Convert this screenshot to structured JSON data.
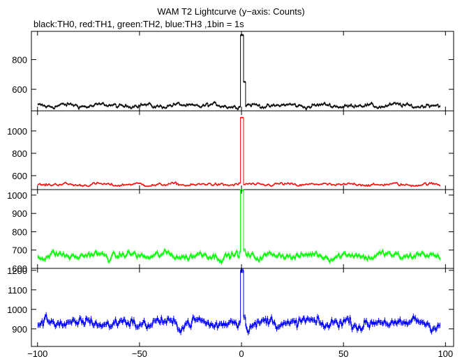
{
  "title": "WAM T2 Lightcurve (y−axis: Counts)",
  "subtitle": "black:TH0, red:TH1, green:TH2, blue:TH3 ,1bin = 1s",
  "chart_data": {
    "type": "line",
    "x_range": [
      -103,
      104
    ],
    "x_ticks": [
      -100,
      -50,
      0,
      50,
      100
    ],
    "x_tick_labels": [
      "−100",
      "−50",
      "0",
      "50",
      "100"
    ],
    "grid": false,
    "panels": [
      {
        "series": "TH0",
        "color": "#000000",
        "ylim": [
          455,
          990
        ],
        "y_ticks": [
          600,
          800
        ],
        "baseline": 490,
        "noise": 20,
        "peak": 965,
        "shoulder": 650
      },
      {
        "series": "TH1",
        "color": "#ff0000",
        "ylim": [
          475,
          1180
        ],
        "y_ticks": [
          600,
          800,
          1000
        ],
        "baseline": 520,
        "noise": 18,
        "peak": 1120,
        "shoulder": 520
      },
      {
        "series": "TH2",
        "color": "#00ff00",
        "ylim": [
          600,
          1030
        ],
        "y_ticks": [
          600,
          700,
          800,
          900,
          1000
        ],
        "baseline": 670,
        "noise": 28,
        "peak": 1030,
        "shoulder": 700
      },
      {
        "series": "TH3",
        "color": "#0000ff",
        "ylim": [
          810,
          1210
        ],
        "y_ticks": [
          900,
          1000,
          1100,
          1200
        ],
        "baseline": 930,
        "noise": 38,
        "peak": 1200,
        "shoulder": 960
      }
    ]
  }
}
